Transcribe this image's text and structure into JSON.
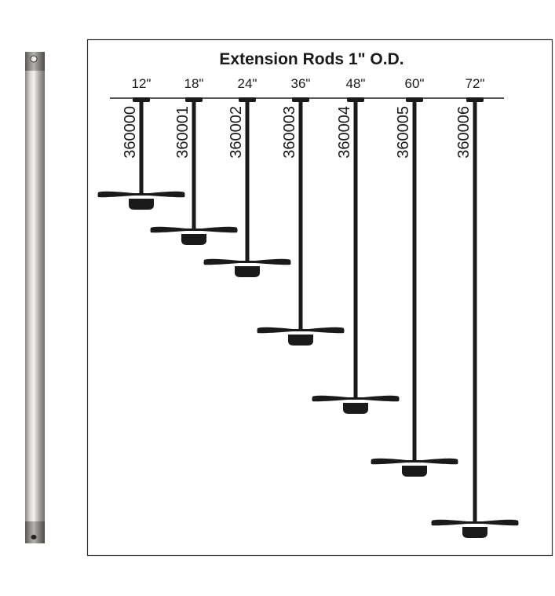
{
  "title": "Extension Rods 1\" O.D.",
  "rods": [
    {
      "length": "12\"",
      "part": "360000"
    },
    {
      "length": "18\"",
      "part": "360001"
    },
    {
      "length": "24\"",
      "part": "360002"
    },
    {
      "length": "36\"",
      "part": "360003"
    },
    {
      "length": "48\"",
      "part": "360004"
    },
    {
      "length": "60\"",
      "part": "360005"
    },
    {
      "length": "72\"",
      "part": "360006"
    }
  ],
  "colors": {
    "ink": "#1a1a1a",
    "frame": "#333333",
    "rod_finish": "#b8b6b2"
  }
}
